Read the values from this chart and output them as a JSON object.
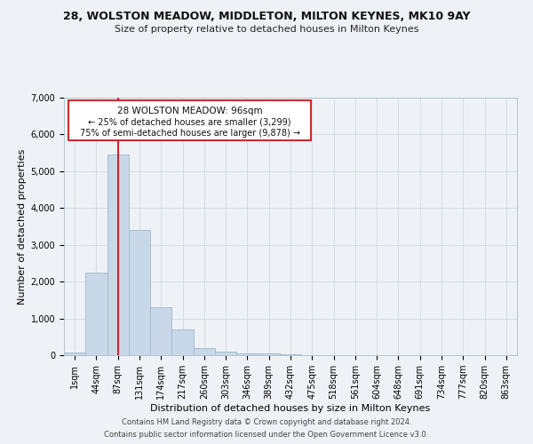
{
  "title": "28, WOLSTON MEADOW, MIDDLETON, MILTON KEYNES, MK10 9AY",
  "subtitle": "Size of property relative to detached houses in Milton Keynes",
  "xlabel": "Distribution of detached houses by size in Milton Keynes",
  "ylabel": "Number of detached properties",
  "footer_line1": "Contains HM Land Registry data © Crown copyright and database right 2024.",
  "footer_line2": "Contains public sector information licensed under the Open Government Licence v3.0.",
  "annotation_title": "28 WOLSTON MEADOW: 96sqm",
  "annotation_line1": "← 25% of detached houses are smaller (3,299)",
  "annotation_line2": "75% of semi-detached houses are larger (9,878) →",
  "bin_labels": [
    "1sqm",
    "44sqm",
    "87sqm",
    "131sqm",
    "174sqm",
    "217sqm",
    "260sqm",
    "303sqm",
    "346sqm",
    "389sqm",
    "432sqm",
    "475sqm",
    "518sqm",
    "561sqm",
    "604sqm",
    "648sqm",
    "691sqm",
    "734sqm",
    "777sqm",
    "820sqm",
    "863sqm"
  ],
  "bar_values": [
    75,
    2250,
    5450,
    3400,
    1300,
    700,
    200,
    90,
    60,
    50,
    30,
    0,
    0,
    0,
    0,
    0,
    0,
    0,
    0,
    0,
    0
  ],
  "bar_color": "#c8d8e8",
  "bar_edge_color": "#a0b8cc",
  "grid_color": "#d0d8e0",
  "annotation_box_color": "#cc0000",
  "vline_color": "#cc0000",
  "vline_position": 2.0,
  "ylim": [
    0,
    7000
  ],
  "yticks": [
    0,
    1000,
    2000,
    3000,
    4000,
    5000,
    6000,
    7000
  ],
  "background_color": "#eef2f6",
  "plot_bg_color": "#eef2f6",
  "title_fontsize": 9,
  "subtitle_fontsize": 8,
  "axis_label_fontsize": 8,
  "tick_fontsize": 7,
  "annotation_fontsize": 7,
  "footer_fontsize": 6
}
